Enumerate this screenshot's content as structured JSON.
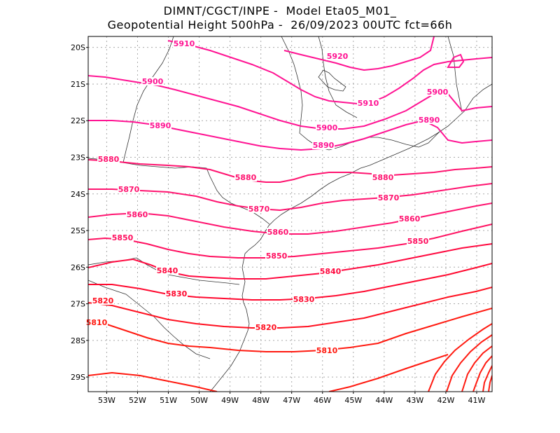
{
  "header": {
    "line1": "DIMNT/CGCT/INPE -  Model Eta05_M01_",
    "line2": "Geopotential Height 500hPa -  26/09/2023 00UTC fct=66h"
  },
  "map": {
    "lon_range": [
      -53.6,
      -40.5
    ],
    "lat_range": [
      -29.4,
      -19.7
    ],
    "lat_ticks": [
      "20S",
      "21S",
      "22S",
      "23S",
      "24S",
      "25S",
      "26S",
      "27S",
      "28S",
      "29S"
    ],
    "lon_ticks": [
      "53W",
      "52W",
      "51W",
      "50W",
      "49W",
      "48W",
      "47W",
      "46W",
      "45W",
      "44W",
      "43W",
      "42W",
      "41W"
    ],
    "grid": true,
    "contour_interval": 10,
    "contours": [
      {
        "label": "5920",
        "color": "#ff1493"
      },
      {
        "label": "5910",
        "color": "#ff1493"
      },
      {
        "label": "5900",
        "color": "#ff1493"
      },
      {
        "label": "5890",
        "color": "#ff1493"
      },
      {
        "label": "5880",
        "color": "#ff1470"
      },
      {
        "label": "5870",
        "color": "#ff1470"
      },
      {
        "label": "5860",
        "color": "#ff1470"
      },
      {
        "label": "5850",
        "color": "#ff1060"
      },
      {
        "label": "5840",
        "color": "#ff0a40"
      },
      {
        "label": "5830",
        "color": "#ff0a30"
      },
      {
        "label": "5820",
        "color": "#ff1020"
      },
      {
        "label": "5810",
        "color": "#ff1a10"
      }
    ]
  }
}
